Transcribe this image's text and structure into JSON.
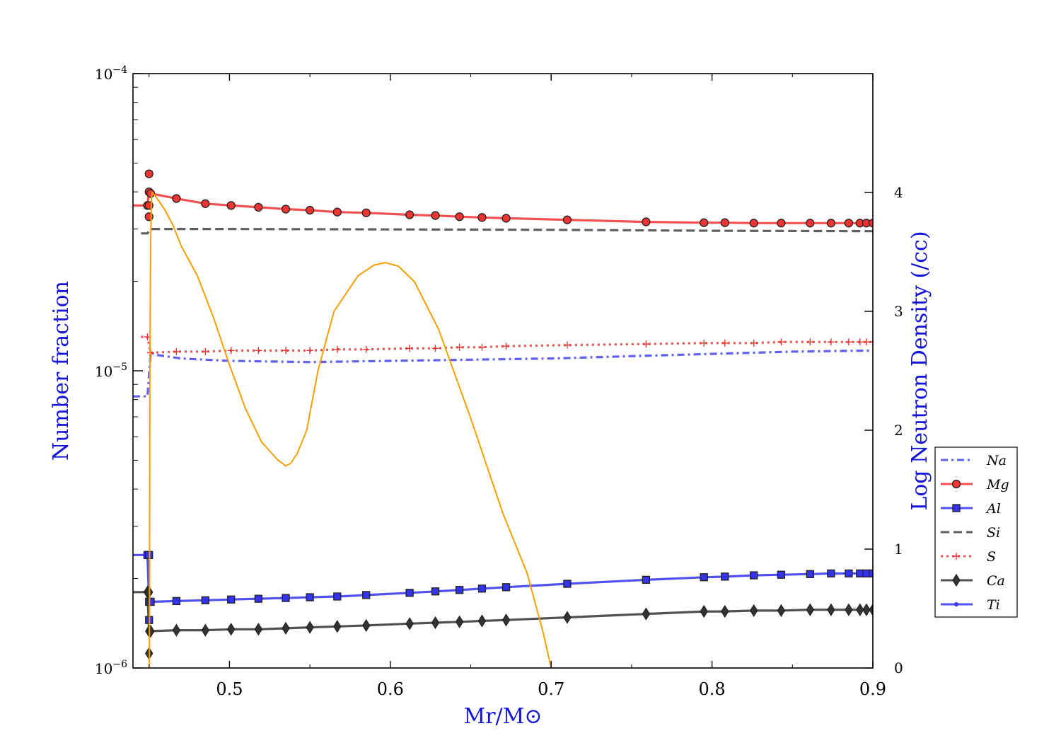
{
  "chart_data": {
    "type": "line",
    "xlabel": "Mr/M⊙",
    "ylabel_left": "Number fraction",
    "ylabel_right": "Log Neutron Density (/cc)",
    "xlim": [
      0.44,
      0.9
    ],
    "ylim_left": [
      1e-06,
      0.0001
    ],
    "ylim_left_scale": "log",
    "ylim_right": [
      0,
      5
    ],
    "x_ticks": [
      "0.5",
      "0.6",
      "0.7",
      "0.8",
      "0.9"
    ],
    "x_tick_values": [
      0.5,
      0.6,
      0.7,
      0.8,
      0.9
    ],
    "y_left_ticks": [
      {
        "value": 0.0001,
        "mant": "10",
        "exp": "−4"
      },
      {
        "value": 1e-05,
        "mant": "10",
        "exp": "−5"
      },
      {
        "value": 1e-06,
        "mant": "10",
        "exp": "−6"
      }
    ],
    "y_right_ticks": [
      "0",
      "1",
      "2",
      "3",
      "4"
    ],
    "y_right_tick_values": [
      0,
      1,
      2,
      3,
      4
    ],
    "legend_position": "right, outside-bottom",
    "legend": [
      {
        "label": "Na",
        "color": "#4444ee",
        "dash": "dashdot",
        "marker": "none"
      },
      {
        "label": "Mg",
        "color": "#ee3333",
        "dash": "solid",
        "marker": "circle"
      },
      {
        "label": "Al",
        "color": "#3333ee",
        "dash": "solid",
        "marker": "square"
      },
      {
        "label": "Si",
        "color": "#444444",
        "dash": "dashed",
        "marker": "none"
      },
      {
        "label": "S",
        "color": "#ee3333",
        "dash": "dotted",
        "marker": "plus"
      },
      {
        "label": "Ca",
        "color": "#333333",
        "dash": "solid",
        "marker": "diamond"
      },
      {
        "label": "Ti",
        "color": "#3333ee",
        "dash": "solid",
        "marker": "point"
      }
    ],
    "series": [
      {
        "name": "Na",
        "axis": "left",
        "color": "#4444ee",
        "dash": "dashdot",
        "marker": "none",
        "x": [
          0.44,
          0.449,
          0.451,
          0.455,
          0.47,
          0.5,
          0.55,
          0.6,
          0.65,
          0.7,
          0.75,
          0.8,
          0.85,
          0.9
        ],
        "y": [
          8.2e-06,
          8.2e-06,
          1.15e-05,
          1.13e-05,
          1.1e-05,
          1.08e-05,
          1.07e-05,
          1.08e-05,
          1.09e-05,
          1.1e-05,
          1.12e-05,
          1.14e-05,
          1.16e-05,
          1.17e-05
        ]
      },
      {
        "name": "Mg",
        "axis": "left",
        "color": "#ee3333",
        "dash": "solid",
        "marker": "circle",
        "x": [
          0.44,
          0.449,
          0.45,
          0.451,
          0.467,
          0.485,
          0.501,
          0.518,
          0.535,
          0.55,
          0.567,
          0.585,
          0.612,
          0.628,
          0.643,
          0.657,
          0.672,
          0.71,
          0.759,
          0.795,
          0.808,
          0.826,
          0.843,
          0.861,
          0.874,
          0.885,
          0.892,
          0.896,
          0.9
        ],
        "y": [
          3.6e-05,
          3.6e-05,
          4e-05,
          3.95e-05,
          3.8e-05,
          3.65e-05,
          3.6e-05,
          3.55e-05,
          3.5e-05,
          3.47e-05,
          3.42e-05,
          3.4e-05,
          3.35e-05,
          3.33e-05,
          3.3e-05,
          3.28e-05,
          3.26e-05,
          3.22e-05,
          3.17e-05,
          3.15e-05,
          3.15e-05,
          3.14e-05,
          3.14e-05,
          3.14e-05,
          3.14e-05,
          3.14e-05,
          3.14e-05,
          3.14e-05,
          3.14e-05
        ],
        "extra_markers": {
          "x": [
            0.45,
            0.45,
            0.45
          ],
          "y": [
            4.6e-05,
            3.3e-05,
            3.6e-05
          ]
        }
      },
      {
        "name": "Al",
        "axis": "left",
        "color": "#3333ee",
        "dash": "solid",
        "marker": "square",
        "x": [
          0.44,
          0.449,
          0.45,
          0.451,
          0.467,
          0.485,
          0.501,
          0.518,
          0.535,
          0.55,
          0.567,
          0.585,
          0.612,
          0.628,
          0.643,
          0.657,
          0.672,
          0.71,
          0.759,
          0.795,
          0.808,
          0.826,
          0.843,
          0.861,
          0.874,
          0.885,
          0.892,
          0.896,
          0.9
        ],
        "y": [
          2.4e-06,
          2.4e-06,
          1.67e-06,
          1.67e-06,
          1.68e-06,
          1.69e-06,
          1.7e-06,
          1.71e-06,
          1.72e-06,
          1.73e-06,
          1.74e-06,
          1.76e-06,
          1.79e-06,
          1.81e-06,
          1.83e-06,
          1.85e-06,
          1.87e-06,
          1.92e-06,
          1.98e-06,
          2.02e-06,
          2.03e-06,
          2.05e-06,
          2.06e-06,
          2.07e-06,
          2.08e-06,
          2.08e-06,
          2.08e-06,
          2.08e-06,
          2.08e-06
        ],
        "extra_markers": {
          "x": [
            0.45,
            0.45
          ],
          "y": [
            2.4e-06,
            1.45e-06
          ]
        }
      },
      {
        "name": "Si",
        "axis": "left",
        "color": "#444444",
        "dash": "dashed",
        "marker": "none",
        "x": [
          0.445,
          0.449,
          0.451,
          0.5,
          0.6,
          0.7,
          0.8,
          0.9
        ],
        "y": [
          2.9e-05,
          2.9e-05,
          3e-05,
          3e-05,
          2.99e-05,
          2.98e-05,
          2.96e-05,
          2.95e-05
        ]
      },
      {
        "name": "S",
        "axis": "left",
        "color": "#ee3333",
        "dash": "dotted",
        "marker": "plus",
        "x": [
          0.445,
          0.449,
          0.451,
          0.467,
          0.485,
          0.501,
          0.518,
          0.535,
          0.55,
          0.567,
          0.585,
          0.612,
          0.628,
          0.643,
          0.657,
          0.672,
          0.71,
          0.759,
          0.795,
          0.808,
          0.826,
          0.843,
          0.861,
          0.874,
          0.885,
          0.892,
          0.896,
          0.9
        ],
        "y": [
          1.3e-05,
          1.3e-05,
          1.15e-05,
          1.16e-05,
          1.16e-05,
          1.17e-05,
          1.17e-05,
          1.17e-05,
          1.17e-05,
          1.18e-05,
          1.18e-05,
          1.19e-05,
          1.19e-05,
          1.2e-05,
          1.2e-05,
          1.21e-05,
          1.22e-05,
          1.23e-05,
          1.24e-05,
          1.24e-05,
          1.24e-05,
          1.25e-05,
          1.25e-05,
          1.25e-05,
          1.25e-05,
          1.25e-05,
          1.25e-05,
          1.25e-05
        ]
      },
      {
        "name": "Ca",
        "axis": "left",
        "color": "#333333",
        "dash": "solid",
        "marker": "diamond",
        "x": [
          0.44,
          0.449,
          0.45,
          0.451,
          0.467,
          0.485,
          0.501,
          0.518,
          0.535,
          0.55,
          0.567,
          0.585,
          0.612,
          0.628,
          0.643,
          0.657,
          0.672,
          0.71,
          0.759,
          0.795,
          0.808,
          0.826,
          0.843,
          0.861,
          0.874,
          0.885,
          0.892,
          0.896,
          0.9
        ],
        "y": [
          1.8e-06,
          1.8e-06,
          1.33e-06,
          1.33e-06,
          1.34e-06,
          1.34e-06,
          1.35e-06,
          1.35e-06,
          1.36e-06,
          1.37e-06,
          1.38e-06,
          1.39e-06,
          1.41e-06,
          1.42e-06,
          1.43e-06,
          1.44e-06,
          1.45e-06,
          1.48e-06,
          1.52e-06,
          1.55e-06,
          1.55e-06,
          1.56e-06,
          1.56e-06,
          1.57e-06,
          1.57e-06,
          1.57e-06,
          1.57e-06,
          1.57e-06,
          1.57e-06
        ],
        "extra_markers": {
          "x": [
            0.45,
            0.45
          ],
          "y": [
            1.8e-06,
            1.12e-06
          ]
        }
      },
      {
        "name": "Neutron density",
        "axis": "right",
        "color": "#f5a000",
        "dash": "solid",
        "marker": "none",
        "x": [
          0.4502,
          0.4505,
          0.451,
          0.4515,
          0.452,
          0.455,
          0.46,
          0.465,
          0.47,
          0.48,
          0.49,
          0.5,
          0.51,
          0.52,
          0.53,
          0.535,
          0.538,
          0.542,
          0.548,
          0.555,
          0.565,
          0.58,
          0.59,
          0.597,
          0.605,
          0.615,
          0.63,
          0.65,
          0.67,
          0.685,
          0.695,
          0.7
        ],
        "y": [
          0.0,
          2.5,
          3.6,
          3.95,
          4.0,
          3.95,
          3.85,
          3.72,
          3.55,
          3.3,
          2.95,
          2.55,
          2.18,
          1.9,
          1.75,
          1.7,
          1.72,
          1.8,
          2.0,
          2.5,
          3.0,
          3.3,
          3.39,
          3.41,
          3.38,
          3.25,
          2.85,
          2.1,
          1.3,
          0.8,
          0.3,
          0.0
        ]
      }
    ]
  }
}
